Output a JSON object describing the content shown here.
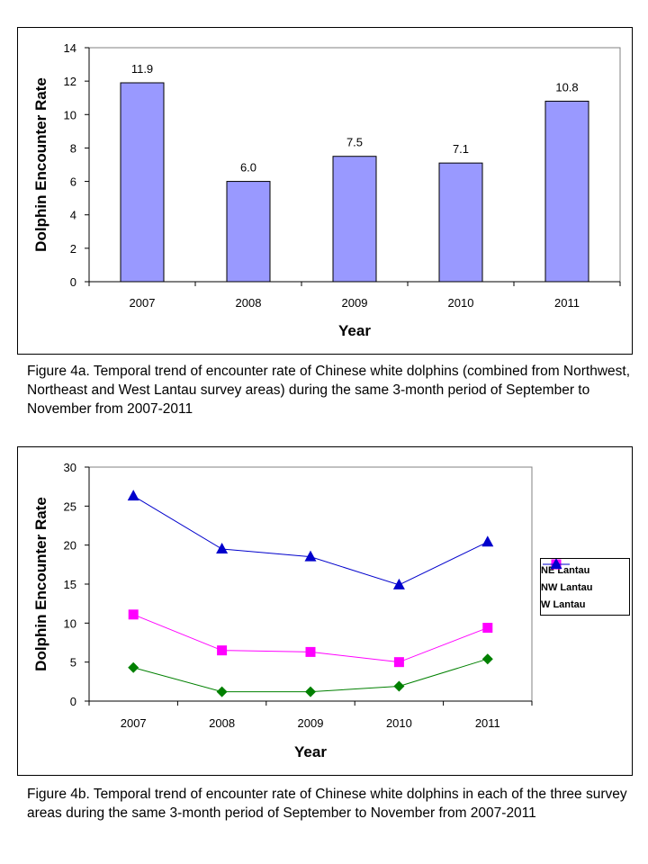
{
  "chart_data": [
    {
      "type": "bar",
      "categories": [
        "2007",
        "2008",
        "2009",
        "2010",
        "2011"
      ],
      "values": [
        11.9,
        6.0,
        7.5,
        7.1,
        10.8
      ],
      "data_labels": [
        "11.9",
        "6.0",
        "7.5",
        "7.1",
        "10.8"
      ],
      "xlabel": "Year",
      "ylabel": "Dolphin Encounter Rate",
      "ylim": [
        0,
        14
      ],
      "yticks": [
        0,
        2,
        4,
        6,
        8,
        10,
        12,
        14
      ],
      "bar_color": "#9999ff",
      "grid": false
    },
    {
      "type": "line",
      "categories": [
        "2007",
        "2008",
        "2009",
        "2010",
        "2011"
      ],
      "series": [
        {
          "name": "NE Lantau",
          "values": [
            4.3,
            1.2,
            1.2,
            1.9,
            5.4
          ],
          "color": "#008000",
          "marker": "diamond"
        },
        {
          "name": "NW Lantau",
          "values": [
            11.1,
            6.5,
            6.3,
            5.0,
            9.4
          ],
          "color": "#ff00ff",
          "marker": "square"
        },
        {
          "name": "W Lantau",
          "values": [
            26.3,
            19.5,
            18.5,
            14.9,
            20.4
          ],
          "color": "#0000cc",
          "marker": "triangle"
        }
      ],
      "xlabel": "Year",
      "ylabel": "Dolphin Encounter Rate",
      "ylim": [
        0,
        30
      ],
      "yticks": [
        0,
        5,
        10,
        15,
        20,
        25,
        30
      ],
      "legend_position": "right",
      "grid": false
    }
  ],
  "captions": {
    "a": "Figure 4a.  Temporal trend of encounter rate of Chinese white dolphins (combined from Northwest, Northeast and West Lantau survey areas) during the same 3-month period of September to November from 2007-2011",
    "b": "Figure 4b.  Temporal trend of encounter rate of Chinese white dolphins in each of the three survey areas during the same 3-month period of September to November from 2007-2011"
  }
}
